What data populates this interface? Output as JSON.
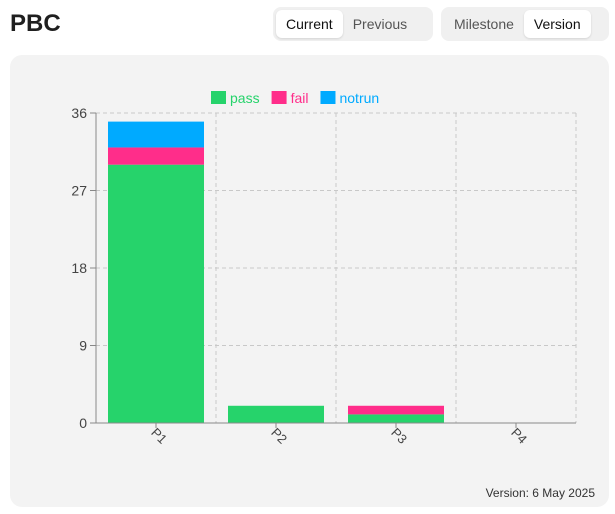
{
  "header": {
    "title": "PBC"
  },
  "toggle_period": {
    "options": [
      "Current",
      "Previous"
    ],
    "active": "Current"
  },
  "toggle_mode": {
    "options": [
      "Milestone",
      "Version"
    ],
    "active": "Version"
  },
  "footer": {
    "label": "Version: 6 May 2025"
  },
  "colors": {
    "pass": "#26d36b",
    "fail": "#ff2d8a",
    "notrun": "#00aaff"
  },
  "chart_data": {
    "type": "bar",
    "stacked": true,
    "categories": [
      "P1",
      "P2",
      "P3",
      "P4"
    ],
    "series": [
      {
        "name": "pass",
        "color": "#26d36b",
        "values": [
          30,
          2,
          1,
          0
        ]
      },
      {
        "name": "fail",
        "color": "#ff2d8a",
        "values": [
          2,
          0,
          1,
          0
        ]
      },
      {
        "name": "notrun",
        "color": "#00aaff",
        "values": [
          3,
          0,
          0,
          0
        ]
      }
    ],
    "ylim": [
      0,
      36
    ],
    "yticks": [
      0,
      9,
      18,
      27,
      36
    ],
    "grid": true,
    "legend": "top"
  }
}
